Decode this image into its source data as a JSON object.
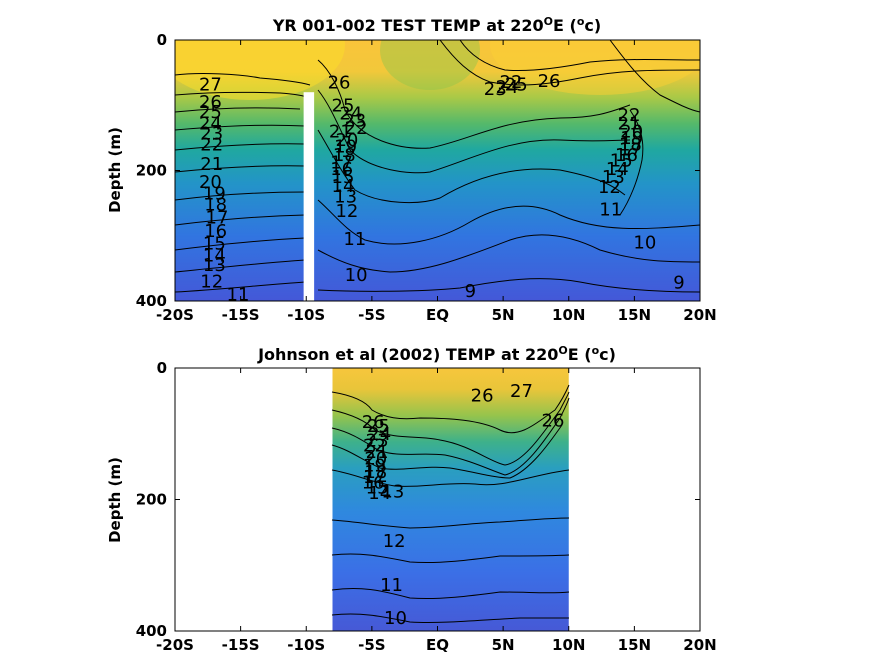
{
  "chart_data": [
    {
      "type": "heatmap",
      "subtype": "filled-contour",
      "title_pre": "YR 001-002 TEST TEMP at 220",
      "title_sup1": "O",
      "title_mid": "E (",
      "title_sup2": "o",
      "title_post": "c)",
      "ylabel": "Depth (m)",
      "xlabel": "",
      "xlim": [
        -20,
        20
      ],
      "ylim": [
        0,
        400
      ],
      "y_reversed": true,
      "x_ticks": [
        -20,
        -15,
        -10,
        -5,
        0,
        5,
        10,
        15,
        20
      ],
      "x_tick_labels": [
        "-20S",
        "-15S",
        "-10S",
        "-5S",
        "EQ",
        "5N",
        "10N",
        "15N",
        "20N"
      ],
      "y_ticks": [
        0,
        200,
        400
      ],
      "y_tick_labels": [
        "0",
        "200",
        "400"
      ],
      "data_extent_x": [
        -20,
        20
      ],
      "gap": {
        "x": [
          -10.2,
          -9.4
        ],
        "depth_top": 80
      },
      "contour_interval": 1,
      "contour_labels": [
        {
          "text": "27",
          "x": -17.3,
          "d": 68
        },
        {
          "text": "26",
          "x": -17.3,
          "d": 95
        },
        {
          "text": "25",
          "x": -17.3,
          "d": 110
        },
        {
          "text": "24",
          "x": -17.3,
          "d": 128
        },
        {
          "text": "23",
          "x": -17.2,
          "d": 143
        },
        {
          "text": "22",
          "x": -17.2,
          "d": 160
        },
        {
          "text": "21",
          "x": -17.2,
          "d": 190
        },
        {
          "text": "20",
          "x": -17.3,
          "d": 218
        },
        {
          "text": "19",
          "x": -17.0,
          "d": 235
        },
        {
          "text": "18",
          "x": -16.9,
          "d": 252
        },
        {
          "text": "17",
          "x": -16.8,
          "d": 272
        },
        {
          "text": "16",
          "x": -16.9,
          "d": 293
        },
        {
          "text": "15",
          "x": -17.0,
          "d": 312
        },
        {
          "text": "14",
          "x": -17.0,
          "d": 330
        },
        {
          "text": "13",
          "x": -17.0,
          "d": 345
        },
        {
          "text": "12",
          "x": -17.2,
          "d": 370
        },
        {
          "text": "11",
          "x": -15.2,
          "d": 390
        },
        {
          "text": "26",
          "x": -7.5,
          "d": 65
        },
        {
          "text": "25",
          "x": -7.2,
          "d": 100
        },
        {
          "text": "24",
          "x": -6.6,
          "d": 113
        },
        {
          "text": "23",
          "x": -6.3,
          "d": 123
        },
        {
          "text": "22",
          "x": -6.2,
          "d": 135
        },
        {
          "text": "21",
          "x": -7.4,
          "d": 140
        },
        {
          "text": "20",
          "x": -6.9,
          "d": 153
        },
        {
          "text": "19",
          "x": -7.0,
          "d": 163
        },
        {
          "text": "18",
          "x": -7.1,
          "d": 176
        },
        {
          "text": "17",
          "x": -7.3,
          "d": 188
        },
        {
          "text": "16",
          "x": -7.3,
          "d": 198
        },
        {
          "text": "15",
          "x": -7.2,
          "d": 210
        },
        {
          "text": "14",
          "x": -7.2,
          "d": 224
        },
        {
          "text": "13",
          "x": -7.0,
          "d": 240
        },
        {
          "text": "12",
          "x": -6.9,
          "d": 262
        },
        {
          "text": "11",
          "x": -6.3,
          "d": 305
        },
        {
          "text": "10",
          "x": -6.2,
          "d": 360
        },
        {
          "text": "9",
          "x": 2.5,
          "d": 385
        },
        {
          "text": "23",
          "x": 4.4,
          "d": 75
        },
        {
          "text": "24",
          "x": 5.3,
          "d": 72
        },
        {
          "text": "25",
          "x": 6.0,
          "d": 68
        },
        {
          "text": "22",
          "x": 5.6,
          "d": 64
        },
        {
          "text": "26",
          "x": 8.5,
          "d": 63
        },
        {
          "text": "22",
          "x": 14.6,
          "d": 115
        },
        {
          "text": "21",
          "x": 14.6,
          "d": 128
        },
        {
          "text": "20",
          "x": 14.8,
          "d": 140
        },
        {
          "text": "19",
          "x": 14.8,
          "d": 150
        },
        {
          "text": "18",
          "x": 14.7,
          "d": 160
        },
        {
          "text": "17",
          "x": 14.7,
          "d": 168
        },
        {
          "text": "16",
          "x": 14.4,
          "d": 176
        },
        {
          "text": "15",
          "x": 14.0,
          "d": 185
        },
        {
          "text": "14",
          "x": 13.7,
          "d": 198
        },
        {
          "text": "13",
          "x": 13.4,
          "d": 210
        },
        {
          "text": "12",
          "x": 13.1,
          "d": 225
        },
        {
          "text": "11",
          "x": 13.2,
          "d": 260
        },
        {
          "text": "10",
          "x": 15.8,
          "d": 310
        },
        {
          "text": "9",
          "x": 18.4,
          "d": 372
        }
      ]
    },
    {
      "type": "heatmap",
      "subtype": "filled-contour",
      "title_pre": "Johnson et al (2002) TEMP at 220",
      "title_sup1": "O",
      "title_mid": "E (",
      "title_sup2": "o",
      "title_post": "c)",
      "ylabel": "Depth (m)",
      "xlabel": "",
      "xlim": [
        -20,
        20
      ],
      "ylim": [
        0,
        400
      ],
      "y_reversed": true,
      "x_ticks": [
        -20,
        -15,
        -10,
        -5,
        0,
        5,
        10,
        15,
        20
      ],
      "x_tick_labels": [
        "-20S",
        "-15S",
        "-10S",
        "-5S",
        "EQ",
        "5N",
        "10N",
        "15N",
        "20N"
      ],
      "y_ticks": [
        0,
        200,
        400
      ],
      "y_tick_labels": [
        "0",
        "200",
        "400"
      ],
      "data_extent_x": [
        -8,
        10
      ],
      "contour_interval": 1,
      "contour_labels": [
        {
          "text": "26",
          "x": -4.9,
          "d": 82
        },
        {
          "text": "25",
          "x": -4.5,
          "d": 88
        },
        {
          "text": "24",
          "x": -4.4,
          "d": 100
        },
        {
          "text": "23",
          "x": -4.6,
          "d": 110
        },
        {
          "text": "22",
          "x": -4.8,
          "d": 118
        },
        {
          "text": "21",
          "x": -4.6,
          "d": 128
        },
        {
          "text": "20",
          "x": -4.7,
          "d": 138
        },
        {
          "text": "19",
          "x": -4.8,
          "d": 148
        },
        {
          "text": "18",
          "x": -4.7,
          "d": 158
        },
        {
          "text": "17",
          "x": -4.8,
          "d": 166
        },
        {
          "text": "16",
          "x": -4.9,
          "d": 174
        },
        {
          "text": "15",
          "x": -4.6,
          "d": 182
        },
        {
          "text": "14",
          "x": -4.4,
          "d": 190
        },
        {
          "text": "13",
          "x": -3.4,
          "d": 188
        },
        {
          "text": "12",
          "x": -3.3,
          "d": 263
        },
        {
          "text": "11",
          "x": -3.5,
          "d": 330
        },
        {
          "text": "10",
          "x": -3.2,
          "d": 380
        },
        {
          "text": "26",
          "x": 3.4,
          "d": 42
        },
        {
          "text": "27",
          "x": 6.4,
          "d": 35
        },
        {
          "text": "26",
          "x": 8.8,
          "d": 80
        }
      ]
    }
  ]
}
